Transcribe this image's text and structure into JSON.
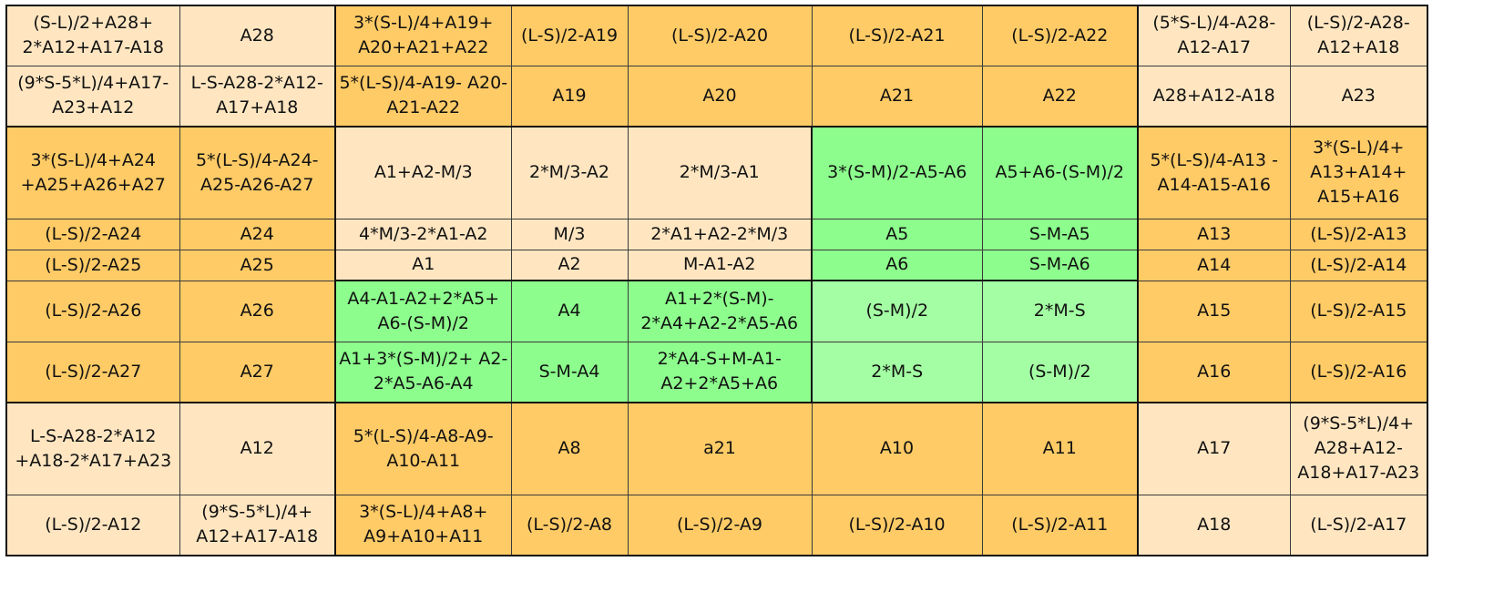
{
  "grid": {
    "rows": [
      [
        "(S-L)/2+A28+ 2*A12+A17-A18",
        "A28",
        "3*(S-L)/4+A19+ A20+A21+A22",
        "(L-S)/2-A19",
        "(L-S)/2-A20",
        "(L-S)/2-A21",
        "(L-S)/2-A22",
        "(5*S-L)/4-A28- A12-A17",
        "(L-S)/2-A28- A12+A18"
      ],
      [
        "(9*S-5*L)/4+A17- A23+A12",
        "L-S-A28-2*A12- A17+A18",
        "5*(L-S)/4-A19- A20-A21-A22",
        "A19",
        "A20",
        "A21",
        "A22",
        "A28+A12-A18",
        "A23"
      ],
      [
        "3*(S-L)/4+A24 +A25+A26+A27",
        "5*(L-S)/4-A24- A25-A26-A27",
        "A1+A2-M/3",
        "2*M/3-A2",
        "2*M/3-A1",
        "3*(S-M)/2-A5-A6",
        "A5+A6-(S-M)/2",
        "5*(L-S)/4-A13 - A14-A15-A16",
        "3*(S-L)/4+ A13+A14+ A15+A16"
      ],
      [
        "(L-S)/2-A24",
        "A24",
        "4*M/3-2*A1-A2",
        "M/3",
        "2*A1+A2-2*M/3",
        "A5",
        "S-M-A5",
        "A13",
        "(L-S)/2-A13"
      ],
      [
        "(L-S)/2-A25",
        "A25",
        "A1",
        "A2",
        "M-A1-A2",
        "A6",
        "S-M-A6",
        "A14",
        "(L-S)/2-A14"
      ],
      [
        "(L-S)/2-A26",
        "A26",
        "A4-A1-A2+2*A5+ A6-(S-M)/2",
        "A4",
        "A1+2*(S-M)- 2*A4+A2-2*A5-A6",
        "(S-M)/2",
        "2*M-S",
        "A15",
        "(L-S)/2-A15"
      ],
      [
        "(L-S)/2-A27",
        "A27",
        "A1+3*(S-M)/2+ A2-2*A5-A6-A4",
        "S-M-A4",
        "2*A4-S+M-A1- A2+2*A5+A6",
        "2*M-S",
        "(S-M)/2",
        "A16",
        "(L-S)/2-A16"
      ],
      [
        "L-S-A28-2*A12 +A18-2*A17+A23",
        "A12",
        "5*(L-S)/4-A8-A9- A10-A11",
        "A8",
        "a21",
        "A10",
        "A11",
        "A17",
        "(9*S-5*L)/4+ A28+A12- A18+A17-A23"
      ],
      [
        "(L-S)/2-A12",
        "(9*S-5*L)/4+ A12+A17-A18",
        "3*(S-L)/4+A8+ A9+A10+A11",
        "(L-S)/2-A8",
        "(L-S)/2-A9",
        "(L-S)/2-A10",
        "(L-S)/2-A11",
        "A18",
        "(L-S)/2-A17"
      ]
    ],
    "fills": [
      [
        "light",
        "light",
        "orange",
        "orange",
        "orange",
        "orange",
        "orange",
        "light",
        "light"
      ],
      [
        "light",
        "light",
        "orange",
        "orange",
        "orange",
        "orange",
        "orange",
        "light",
        "light"
      ],
      [
        "orange",
        "orange",
        "light",
        "light",
        "light",
        "green",
        "green",
        "orange",
        "orange"
      ],
      [
        "orange",
        "orange",
        "light",
        "light",
        "light",
        "green",
        "green",
        "orange",
        "orange"
      ],
      [
        "orange",
        "orange",
        "light",
        "light",
        "light",
        "green",
        "green",
        "orange",
        "orange"
      ],
      [
        "orange",
        "orange",
        "green",
        "green",
        "green",
        "pale-green",
        "pale-green",
        "orange",
        "orange"
      ],
      [
        "orange",
        "orange",
        "green",
        "green",
        "green",
        "pale-green",
        "pale-green",
        "orange",
        "orange"
      ],
      [
        "light",
        "light",
        "orange",
        "orange",
        "orange",
        "orange",
        "orange",
        "light",
        "light"
      ],
      [
        "light",
        "light",
        "orange",
        "orange",
        "orange",
        "orange",
        "orange",
        "light",
        "light"
      ]
    ],
    "palette": {
      "light": "#FFE6C1",
      "orange": "#FFCB66",
      "green": "#8DFE8D",
      "pale-green": "#A4FFA4",
      "heavy_border": "#111111",
      "thin_border": "#3a3a3a"
    }
  }
}
